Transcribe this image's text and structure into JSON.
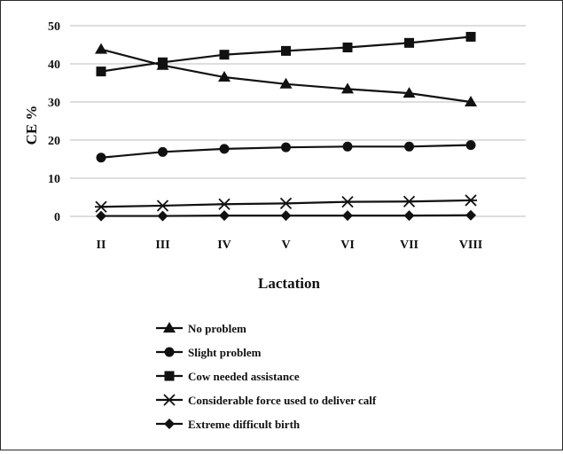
{
  "chart_data": {
    "type": "line",
    "title": "",
    "xlabel": "Lactation",
    "ylabel": "CE %",
    "categories": [
      "II",
      "III",
      "IV",
      "V",
      "VI",
      "VII",
      "VIII"
    ],
    "ylim": [
      0,
      50
    ],
    "yticks": [
      "0",
      "10",
      "20",
      "30",
      "40",
      "50"
    ],
    "grid": true,
    "legend_position": "bottom",
    "series": [
      {
        "name": "No problem",
        "marker": "triangle",
        "values": [
          43.8,
          39.6,
          36.5,
          34.7,
          33.4,
          32.3,
          30.0
        ]
      },
      {
        "name": "Slight problem",
        "marker": "circle",
        "values": [
          15.4,
          16.9,
          17.7,
          18.1,
          18.3,
          18.3,
          18.7
        ]
      },
      {
        "name": "Cow needed assistance",
        "marker": "square",
        "values": [
          38.0,
          40.4,
          42.4,
          43.4,
          44.3,
          45.5,
          47.1
        ]
      },
      {
        "name": "Considerable force used to deliver calf",
        "marker": "asterisk",
        "values": [
          2.5,
          2.8,
          3.2,
          3.4,
          3.8,
          3.9,
          4.2
        ]
      },
      {
        "name": "Extreme difficult birth",
        "marker": "diamond",
        "values": [
          0.1,
          0.1,
          0.2,
          0.2,
          0.2,
          0.2,
          0.3
        ]
      }
    ]
  }
}
